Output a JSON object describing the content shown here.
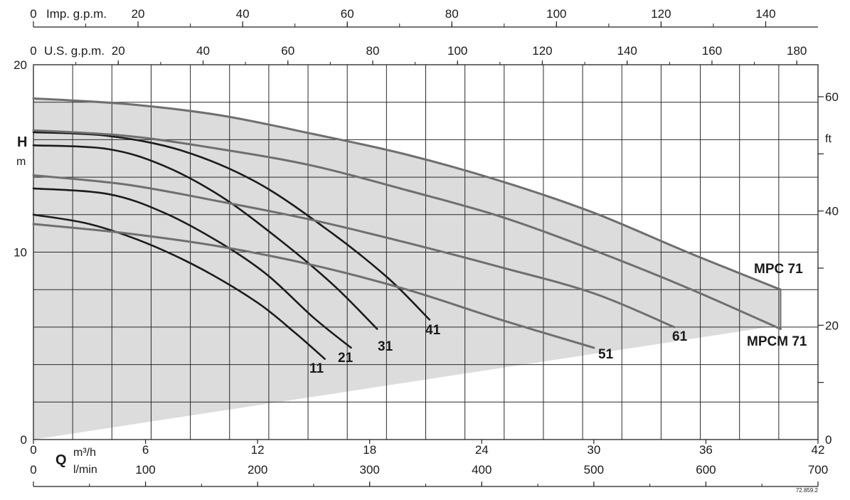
{
  "chart_data": {
    "type": "line",
    "title": "",
    "x_primary": {
      "unit": "m³/h",
      "range": [
        0,
        42
      ],
      "ticks": [
        "0",
        "6",
        "12",
        "18",
        "24",
        "30",
        "36",
        "42"
      ]
    },
    "x_lmin": {
      "unit": "l/min",
      "range": [
        0,
        700
      ],
      "ticks": [
        "0",
        "100",
        "200",
        "300",
        "400",
        "500",
        "600",
        "700"
      ]
    },
    "x_imp": {
      "unit": "Imp. g.p.m.",
      "range": [
        0,
        150
      ],
      "ticks": [
        "0",
        "20",
        "40",
        "60",
        "80",
        "100",
        "120",
        "140"
      ]
    },
    "x_us": {
      "unit": "U.S. g.p.m.",
      "range": [
        0,
        185
      ],
      "ticks": [
        "0",
        "20",
        "40",
        "60",
        "80",
        "100",
        "120",
        "140",
        "160",
        "180"
      ]
    },
    "y_left": {
      "label": "H",
      "unit": "m",
      "range": [
        0,
        20
      ],
      "ticks": [
        "0",
        "10",
        "20"
      ]
    },
    "y_right": {
      "unit": "ft",
      "range": [
        0,
        65.6
      ],
      "ticks": [
        "0",
        "20",
        "40",
        "60"
      ]
    },
    "q_label": "Q",
    "grid": true,
    "series": [
      {
        "name": "11",
        "points": [
          [
            0,
            12.0
          ],
          [
            3,
            11.5
          ],
          [
            6,
            10.5
          ],
          [
            9,
            9.1
          ],
          [
            12,
            7.3
          ],
          [
            14,
            5.7
          ],
          [
            15.6,
            4.3
          ]
        ]
      },
      {
        "name": "21",
        "points": [
          [
            0,
            13.4
          ],
          [
            4,
            13.1
          ],
          [
            7,
            12.1
          ],
          [
            10,
            10.5
          ],
          [
            12.5,
            8.8
          ],
          [
            15,
            6.5
          ],
          [
            17,
            4.9
          ]
        ]
      },
      {
        "name": "31",
        "points": [
          [
            0,
            15.7
          ],
          [
            4,
            15.5
          ],
          [
            7,
            14.6
          ],
          [
            10,
            13.0
          ],
          [
            13,
            10.8
          ],
          [
            16,
            8.3
          ],
          [
            18.4,
            5.9
          ]
        ]
      },
      {
        "name": "41",
        "points": [
          [
            0,
            16.4
          ],
          [
            4,
            16.2
          ],
          [
            8,
            15.4
          ],
          [
            12,
            13.7
          ],
          [
            16,
            11.0
          ],
          [
            19,
            8.6
          ],
          [
            21.2,
            6.4
          ]
        ]
      },
      {
        "name": "51",
        "points": [
          [
            0,
            11.5
          ],
          [
            5,
            11.0
          ],
          [
            10,
            10.3
          ],
          [
            15,
            9.3
          ],
          [
            20,
            8.0
          ],
          [
            25,
            6.4
          ],
          [
            30,
            4.9
          ]
        ]
      },
      {
        "name": "61",
        "points": [
          [
            0,
            14.1
          ],
          [
            5,
            13.6
          ],
          [
            10,
            12.7
          ],
          [
            15,
            11.7
          ],
          [
            20,
            10.5
          ],
          [
            25,
            9.2
          ],
          [
            30,
            7.8
          ],
          [
            34.3,
            6.0
          ]
        ]
      },
      {
        "name": "MPCM 71",
        "points": [
          [
            0,
            16.5
          ],
          [
            5,
            16.2
          ],
          [
            10,
            15.5
          ],
          [
            15,
            14.6
          ],
          [
            20,
            13.3
          ],
          [
            25,
            11.9
          ],
          [
            30,
            10.1
          ],
          [
            35,
            8.1
          ],
          [
            40,
            5.9
          ]
        ]
      },
      {
        "name": "MPC 71",
        "points": [
          [
            0,
            18.2
          ],
          [
            5,
            17.9
          ],
          [
            10,
            17.3
          ],
          [
            15,
            16.3
          ],
          [
            20,
            15.2
          ],
          [
            25,
            13.8
          ],
          [
            30,
            12.1
          ],
          [
            35,
            10.0
          ],
          [
            40,
            8.0
          ]
        ]
      }
    ],
    "envelope_lower": [
      [
        0,
        0
      ],
      [
        40,
        6.1
      ]
    ],
    "labels": [
      "11",
      "21",
      "31",
      "41",
      "51",
      "61",
      "MPC 71",
      "MPCM 71"
    ],
    "reference": "72.859.2"
  }
}
